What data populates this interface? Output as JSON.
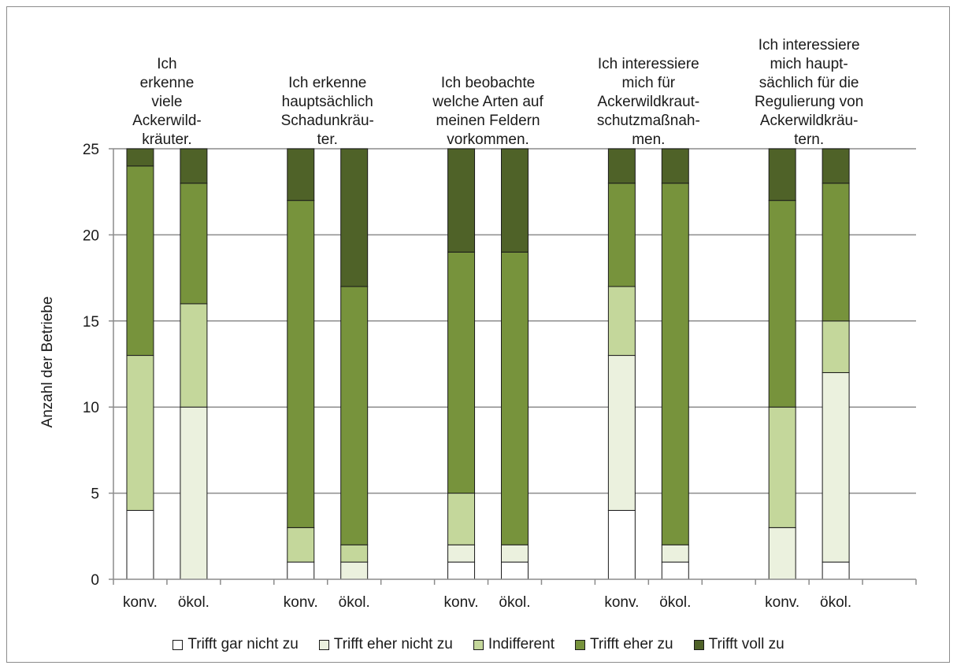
{
  "chart_data": {
    "type": "bar",
    "stacked": true,
    "ylabel": "Anzahl der Betriebe",
    "ylim": [
      0,
      25
    ],
    "yticks": [
      0,
      5,
      10,
      15,
      20,
      25
    ],
    "grid": true,
    "legend_position": "bottom",
    "groups": [
      {
        "title": "Ich erkenne viele Ackerwild-kräuter.",
        "title_lines": [
          "Ich",
          "erkenne",
          "viele",
          "Ackerwild-",
          "kräuter."
        ]
      },
      {
        "title": "Ich erkenne hauptsächlich Schadunkräu-ter.",
        "title_lines": [
          "Ich erkenne",
          "hauptsächlich",
          "Schadunkräu-",
          "ter."
        ]
      },
      {
        "title": "Ich beobachte welche Arten auf meinen Feldern vorkommen.",
        "title_lines": [
          "Ich beobachte",
          "welche Arten auf",
          "meinen Feldern",
          "vorkommen."
        ]
      },
      {
        "title": "Ich interessiere mich für Ackerwildkraut-schutzmaßnah-men.",
        "title_lines": [
          "Ich interessiere",
          "mich für",
          "Ackerwildkraut-",
          "schutzmaßnah-",
          "men."
        ]
      },
      {
        "title": "Ich interessiere mich haupt-sächlich für die Regulierung von Ackerwildkräu-tern.",
        "title_lines": [
          "Ich interessiere",
          "mich haupt-",
          "sächlich für die",
          "Regulierung von",
          "Ackerwildkräu-",
          "tern."
        ]
      }
    ],
    "bar_labels": [
      "konv.",
      "ökol."
    ],
    "series": [
      {
        "name": "Trifft gar nicht zu",
        "color": "#ffffff",
        "values": [
          [
            4,
            0
          ],
          [
            1,
            0
          ],
          [
            1,
            1
          ],
          [
            4,
            1
          ],
          [
            0,
            1
          ]
        ]
      },
      {
        "name": "Trifft eher nicht zu",
        "color": "#ebf1de",
        "values": [
          [
            0,
            10
          ],
          [
            0,
            1
          ],
          [
            1,
            1
          ],
          [
            9,
            1
          ],
          [
            3,
            11
          ]
        ]
      },
      {
        "name": "Indifferent",
        "color": "#c4d79b",
        "values": [
          [
            9,
            6
          ],
          [
            2,
            1
          ],
          [
            3,
            0
          ],
          [
            4,
            0
          ],
          [
            7,
            3
          ]
        ]
      },
      {
        "name": "Trifft eher zu",
        "color": "#77933c",
        "values": [
          [
            11,
            7
          ],
          [
            19,
            15
          ],
          [
            14,
            17
          ],
          [
            6,
            21
          ],
          [
            12,
            8
          ]
        ]
      },
      {
        "name": "Trifft voll zu",
        "color": "#4f6228",
        "values": [
          [
            1,
            2
          ],
          [
            3,
            8
          ],
          [
            6,
            6
          ],
          [
            2,
            2
          ],
          [
            3,
            2
          ]
        ]
      }
    ]
  }
}
